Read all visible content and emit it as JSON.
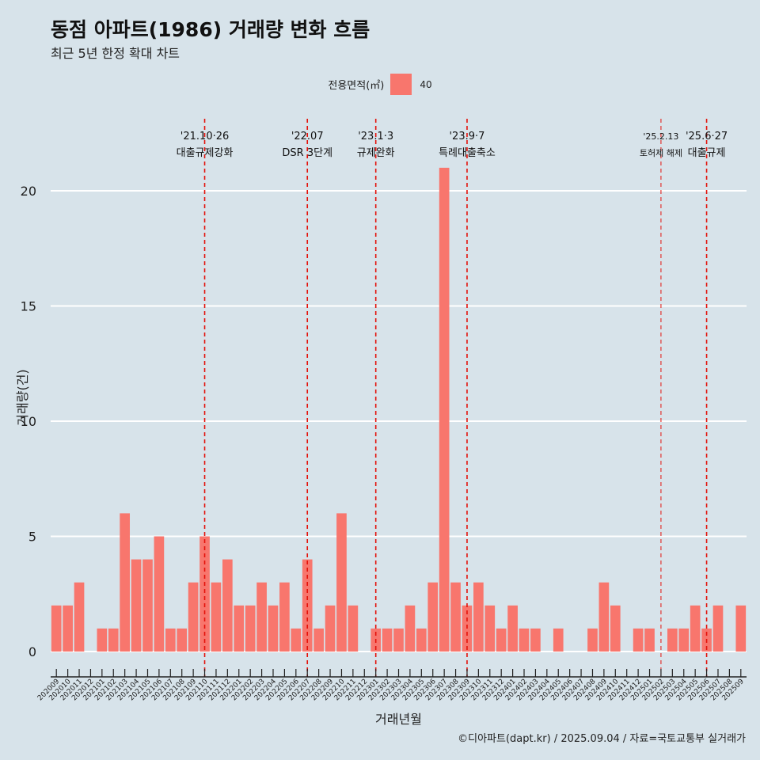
{
  "title": "동점 아파트(1986) 거래량 변화 흐름",
  "subtitle": "최근 5년 한정 확대 차트",
  "legend": {
    "title": "전용면적(㎡)",
    "label": "40",
    "color": "#f8766d"
  },
  "caption": "©디아파트(dapt.kr) / 2025.09.04 / 자료=국토교통부 실거래가",
  "chart_data": {
    "type": "bar",
    "xlabel": "거래년월",
    "ylabel": "거래량(건)",
    "ylim": [
      0,
      21
    ],
    "yticks": [
      0,
      5,
      10,
      15,
      20
    ],
    "grid": true,
    "legend_position": "top",
    "bar_color": "#f8766d",
    "categories": [
      "202009",
      "202010",
      "202011",
      "202012",
      "202101",
      "202102",
      "202103",
      "202104",
      "202105",
      "202106",
      "202107",
      "202108",
      "202109",
      "202110",
      "202111",
      "202112",
      "202201",
      "202202",
      "202203",
      "202204",
      "202205",
      "202206",
      "202207",
      "202208",
      "202209",
      "202210",
      "202211",
      "202212",
      "202301",
      "202302",
      "202303",
      "202304",
      "202305",
      "202306",
      "202307",
      "202308",
      "202309",
      "202310",
      "202311",
      "202312",
      "202401",
      "202402",
      "202403",
      "202404",
      "202405",
      "202406",
      "202407",
      "202408",
      "202409",
      "202410",
      "202411",
      "202412",
      "202501",
      "202502",
      "202503",
      "202504",
      "202505",
      "202506",
      "202507",
      "202508",
      "202509"
    ],
    "values": [
      2,
      2,
      3,
      0,
      1,
      1,
      6,
      4,
      4,
      5,
      1,
      1,
      3,
      5,
      3,
      4,
      2,
      2,
      3,
      2,
      3,
      1,
      4,
      1,
      2,
      6,
      2,
      0,
      1,
      1,
      1,
      2,
      1,
      3,
      21,
      3,
      2,
      3,
      2,
      1,
      2,
      1,
      1,
      0,
      1,
      0,
      0,
      1,
      3,
      2,
      0,
      1,
      1,
      0,
      1,
      1,
      2,
      1,
      2,
      0,
      2
    ],
    "annotations": [
      {
        "category": "202110",
        "date": "'21.10·26",
        "label": "대출규제강화"
      },
      {
        "category": "202207",
        "date": "'22.07",
        "label": "DSR 3단계"
      },
      {
        "category": "202301",
        "date": "'23.1·3",
        "label": "규제완화"
      },
      {
        "category": "202309",
        "date": "'23.9·7",
        "label": "특례대출축소"
      },
      {
        "category": "202502",
        "date": "'25.2.13",
        "label": "토허제 해제"
      },
      {
        "category": "202506",
        "date": "'25.6·27",
        "label": "대출규제"
      }
    ],
    "annotation_color": "#e3120b"
  }
}
